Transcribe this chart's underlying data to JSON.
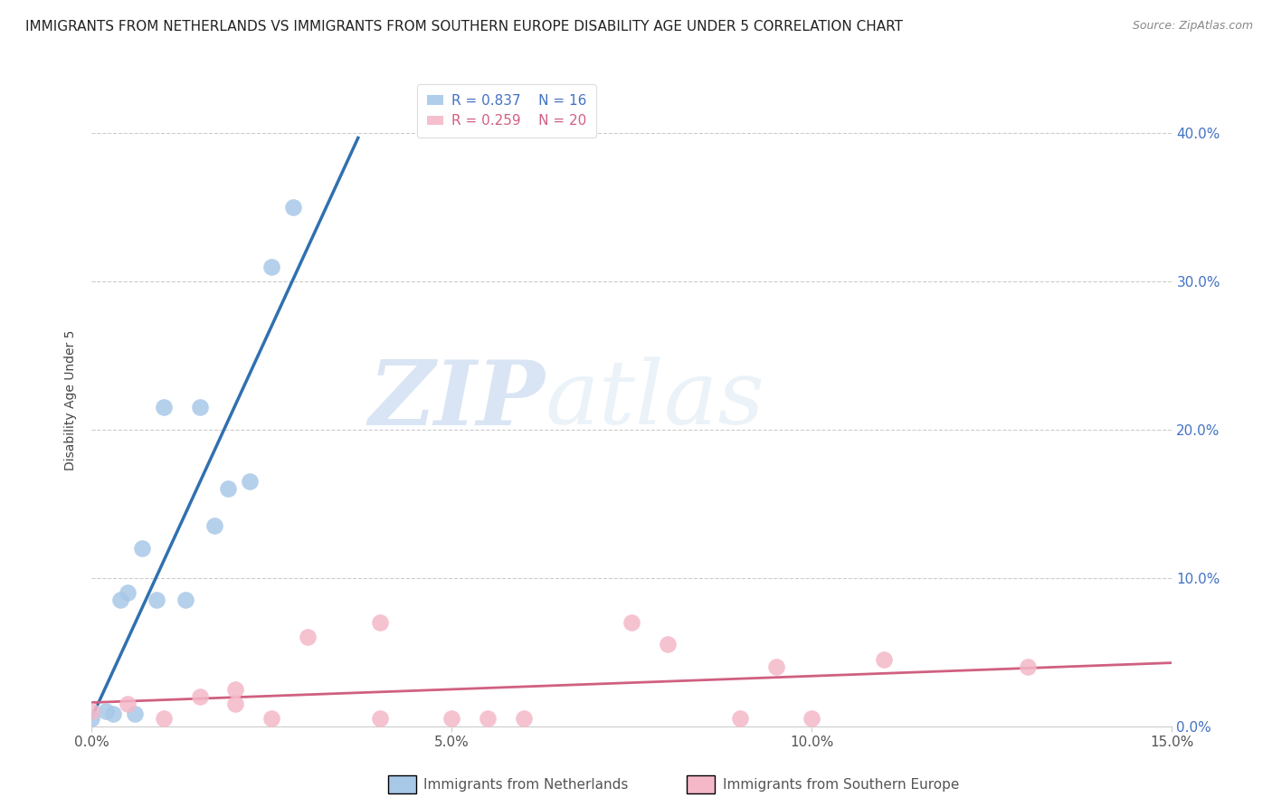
{
  "title": "IMMIGRANTS FROM NETHERLANDS VS IMMIGRANTS FROM SOUTHERN EUROPE DISABILITY AGE UNDER 5 CORRELATION CHART",
  "source": "Source: ZipAtlas.com",
  "ylabel": "Disability Age Under 5",
  "watermark_zip": "ZIP",
  "watermark_atlas": "atlas",
  "netherlands_x": [
    0.0,
    0.002,
    0.003,
    0.004,
    0.005,
    0.006,
    0.007,
    0.009,
    0.01,
    0.013,
    0.015,
    0.017,
    0.019,
    0.022,
    0.025,
    0.028
  ],
  "netherlands_y": [
    0.005,
    0.01,
    0.008,
    0.085,
    0.09,
    0.008,
    0.12,
    0.085,
    0.215,
    0.085,
    0.215,
    0.135,
    0.16,
    0.165,
    0.31,
    0.35
  ],
  "southern_x": [
    0.0,
    0.005,
    0.01,
    0.015,
    0.02,
    0.02,
    0.025,
    0.03,
    0.04,
    0.04,
    0.05,
    0.055,
    0.06,
    0.075,
    0.08,
    0.09,
    0.095,
    0.1,
    0.11,
    0.13
  ],
  "southern_y": [
    0.01,
    0.015,
    0.005,
    0.02,
    0.015,
    0.025,
    0.005,
    0.06,
    0.005,
    0.07,
    0.005,
    0.005,
    0.005,
    0.07,
    0.055,
    0.005,
    0.04,
    0.005,
    0.045,
    0.04
  ],
  "netherlands_R": 0.837,
  "netherlands_N": 16,
  "southern_R": 0.259,
  "southern_N": 20,
  "netherlands_color": "#a8c8e8",
  "southern_color": "#f4b8c8",
  "netherlands_line_color": "#3070b0",
  "southern_line_color": "#d06080",
  "xlim": [
    0.0,
    0.15
  ],
  "ylim": [
    0.0,
    0.44
  ],
  "xticks": [
    0.0,
    0.05,
    0.1,
    0.15
  ],
  "yticks_right": [
    0.0,
    0.1,
    0.2,
    0.3,
    0.4
  ],
  "ytick_labels_right": [
    "0.0%",
    "10.0%",
    "20.0%",
    "30.0%",
    "40.0%"
  ],
  "xtick_labels": [
    "0.0%",
    "5.0%",
    "10.0%",
    "15.0%"
  ],
  "legend_netherlands": "Immigrants from Netherlands",
  "legend_southern": "Immigrants from Southern Europe",
  "background_color": "#ffffff",
  "grid_color": "#cccccc",
  "title_fontsize": 11,
  "axis_label_fontsize": 10,
  "tick_fontsize": 11,
  "legend_fontsize": 11,
  "source_fontsize": 9,
  "right_tick_color": "#4472c4"
}
